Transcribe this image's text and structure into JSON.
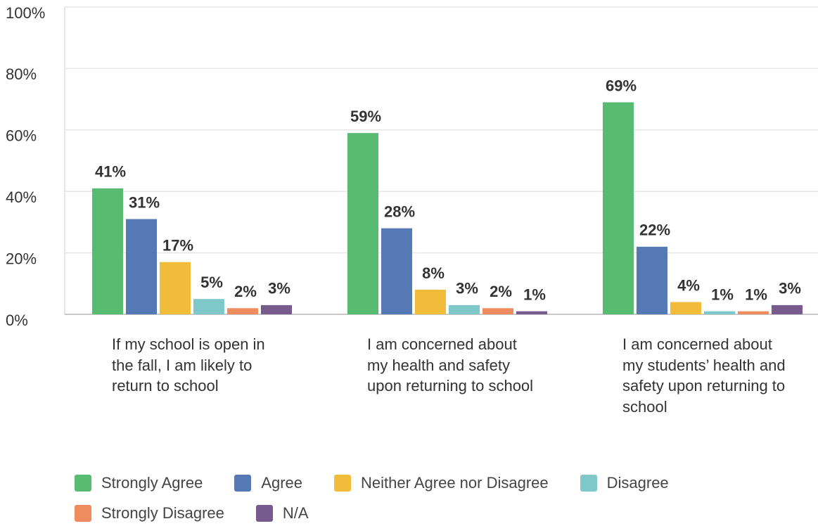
{
  "chart_data": {
    "type": "bar",
    "categories": [
      "If my school is open in the fall, I am likely to return to school",
      "I am concerned about my health and safety upon returning to school",
      "I am concerned about my students’ health and safety upon returning to school"
    ],
    "series": [
      {
        "name": "Strongly Agree",
        "color": "#57bc72",
        "values": [
          41,
          59,
          69
        ],
        "value_labels": [
          "41%",
          "59%",
          "69%"
        ]
      },
      {
        "name": "Agree",
        "color": "#5479b4",
        "values": [
          31,
          28,
          22
        ],
        "value_labels": [
          "31%",
          "28%",
          "22%"
        ]
      },
      {
        "name": "Neither Agree nor Disagree",
        "color": "#f1bc3a",
        "values": [
          17,
          8,
          4
        ],
        "value_labels": [
          "17%",
          "8%",
          "4%"
        ]
      },
      {
        "name": "Disagree",
        "color": "#7fc8c9",
        "values": [
          5,
          3,
          1
        ],
        "value_labels": [
          "5%",
          "3%",
          "1%"
        ]
      },
      {
        "name": "Strongly Disagree",
        "color": "#ee8b5f",
        "values": [
          2,
          2,
          1
        ],
        "value_labels": [
          "2%",
          "2%",
          "1%"
        ]
      },
      {
        "name": "N/A",
        "color": "#775b8c",
        "values": [
          3,
          1,
          3
        ],
        "value_labels": [
          "3%",
          "1%",
          "3%"
        ]
      }
    ],
    "ylim": [
      0,
      100
    ],
    "yticks": [
      {
        "value": 0,
        "label": "0%"
      },
      {
        "value": 20,
        "label": "20%"
      },
      {
        "value": 40,
        "label": "40%"
      },
      {
        "value": 60,
        "label": "60%"
      },
      {
        "value": 80,
        "label": "80%"
      },
      {
        "value": 100,
        "label": "100%"
      }
    ],
    "grid": true,
    "legend": "bottom"
  }
}
